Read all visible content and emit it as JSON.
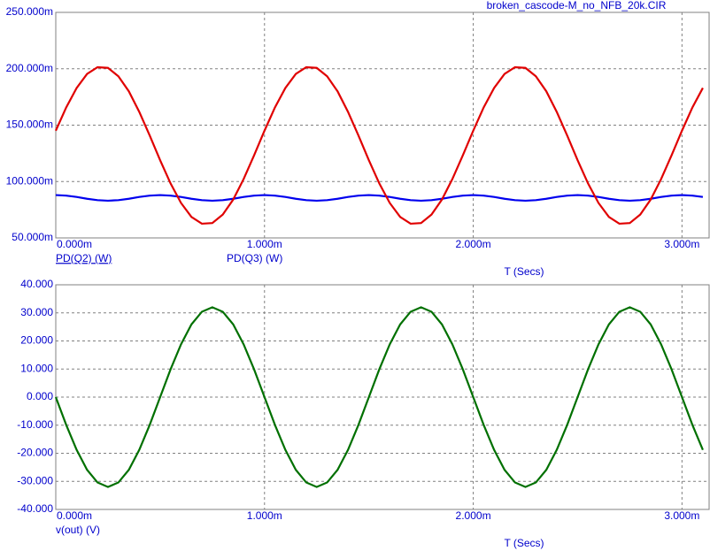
{
  "chart_data": [
    {
      "type": "line",
      "title": "broken_cascode-M_no_NFB_20k.CIR",
      "xlabel": "T (Secs)",
      "grid": true,
      "x": [
        0,
        5e-05,
        0.0001,
        0.00015,
        0.0002,
        0.00025,
        0.0003,
        0.00035,
        0.0004,
        0.00045,
        0.0005,
        0.00055,
        0.0006,
        0.00065,
        0.0007,
        0.00075,
        0.0008,
        0.00085,
        0.0009,
        0.00095,
        0.001,
        0.00105,
        0.0011,
        0.00115,
        0.0012,
        0.00125,
        0.0013,
        0.00135,
        0.0014,
        0.00145,
        0.0015,
        0.00155,
        0.0016,
        0.00165,
        0.0017,
        0.00175,
        0.0018,
        0.00185,
        0.0019,
        0.00195,
        0.002,
        0.00205,
        0.0021,
        0.00215,
        0.0022,
        0.00225,
        0.0023,
        0.00235,
        0.0024,
        0.00245,
        0.0025,
        0.00255,
        0.0026,
        0.00265,
        0.0027,
        0.00275,
        0.0028,
        0.00285,
        0.0029,
        0.00295,
        0.003,
        0.00305,
        0.0031
      ],
      "xlim": [
        0,
        0.00313
      ],
      "xticks": [
        {
          "value": 0,
          "label": "0.000m"
        },
        {
          "value": 0.001,
          "label": "1.000m"
        },
        {
          "value": 0.002,
          "label": "2.000m"
        },
        {
          "value": 0.003,
          "label": "3.000m"
        }
      ],
      "ylim": [
        0.05,
        0.25
      ],
      "yticks": [
        {
          "value": 0.05,
          "label": "50.000m"
        },
        {
          "value": 0.1,
          "label": "100.000m"
        },
        {
          "value": 0.15,
          "label": "150.000m"
        },
        {
          "value": 0.2,
          "label": "200.000m"
        },
        {
          "value": 0.25,
          "label": "250.000m"
        }
      ],
      "series": [
        {
          "name": "PD(Q2) (W)",
          "color": "#0000ee",
          "values": [
            0.088,
            0.0875,
            0.0863,
            0.0847,
            0.0835,
            0.083,
            0.0835,
            0.0847,
            0.0863,
            0.0875,
            0.088,
            0.0875,
            0.0863,
            0.0847,
            0.0835,
            0.083,
            0.0835,
            0.0847,
            0.0863,
            0.0875,
            0.088,
            0.0875,
            0.0863,
            0.0847,
            0.0835,
            0.083,
            0.0835,
            0.0847,
            0.0863,
            0.0875,
            0.088,
            0.0875,
            0.0863,
            0.0847,
            0.0835,
            0.083,
            0.0835,
            0.0847,
            0.0863,
            0.0875,
            0.088,
            0.0875,
            0.0863,
            0.0847,
            0.0835,
            0.083,
            0.0835,
            0.0847,
            0.0863,
            0.0875,
            0.088,
            0.0875,
            0.0863,
            0.0847,
            0.0835,
            0.083,
            0.0835,
            0.0847,
            0.0863,
            0.0875,
            0.088,
            0.0875,
            0.0863
          ]
        },
        {
          "name": "PD(Q3) (W)",
          "color": "#e00000",
          "values": [
            0.1451,
            0.1657,
            0.183,
            0.1954,
            0.2014,
            0.2008,
            0.1933,
            0.18,
            0.1618,
            0.1408,
            0.1189,
            0.0983,
            0.081,
            0.0686,
            0.0626,
            0.0632,
            0.0707,
            0.084,
            0.1022,
            0.1232,
            0.1451,
            0.1657,
            0.183,
            0.1954,
            0.2014,
            0.2008,
            0.1933,
            0.18,
            0.1618,
            0.1408,
            0.1189,
            0.0983,
            0.081,
            0.0686,
            0.0626,
            0.0632,
            0.0707,
            0.084,
            0.1022,
            0.1232,
            0.1451,
            0.1657,
            0.183,
            0.1954,
            0.2014,
            0.2008,
            0.1933,
            0.18,
            0.1618,
            0.1408,
            0.1189,
            0.0983,
            0.081,
            0.0686,
            0.0626,
            0.0632,
            0.0707,
            0.084,
            0.1022,
            0.1232,
            0.1451,
            0.1657,
            0.183
          ]
        }
      ]
    },
    {
      "type": "line",
      "xlabel": "T (Secs)",
      "grid": true,
      "x": [
        0,
        5e-05,
        0.0001,
        0.00015,
        0.0002,
        0.00025,
        0.0003,
        0.00035,
        0.0004,
        0.00045,
        0.0005,
        0.00055,
        0.0006,
        0.00065,
        0.0007,
        0.00075,
        0.0008,
        0.00085,
        0.0009,
        0.00095,
        0.001,
        0.00105,
        0.0011,
        0.00115,
        0.0012,
        0.00125,
        0.0013,
        0.00135,
        0.0014,
        0.00145,
        0.0015,
        0.00155,
        0.0016,
        0.00165,
        0.0017,
        0.00175,
        0.0018,
        0.00185,
        0.0019,
        0.00195,
        0.002,
        0.00205,
        0.0021,
        0.00215,
        0.0022,
        0.00225,
        0.0023,
        0.00235,
        0.0024,
        0.00245,
        0.0025,
        0.00255,
        0.0026,
        0.00265,
        0.0027,
        0.00275,
        0.0028,
        0.00285,
        0.0029,
        0.00295,
        0.003,
        0.00305,
        0.0031
      ],
      "xlim": [
        0,
        0.00313
      ],
      "xticks": [
        {
          "value": 0,
          "label": "0.000m"
        },
        {
          "value": 0.001,
          "label": "1.000m"
        },
        {
          "value": 0.002,
          "label": "2.000m"
        },
        {
          "value": 0.003,
          "label": "3.000m"
        }
      ],
      "ylim": [
        -40,
        40
      ],
      "yticks": [
        {
          "value": -40,
          "label": "-40.000"
        },
        {
          "value": -30,
          "label": "-30.000"
        },
        {
          "value": -20,
          "label": "-20.000"
        },
        {
          "value": -10,
          "label": "-10.000"
        },
        {
          "value": 0,
          "label": "0.000"
        },
        {
          "value": 10,
          "label": "10.000"
        },
        {
          "value": 20,
          "label": "20.000"
        },
        {
          "value": 30,
          "label": "30.000"
        },
        {
          "value": 40,
          "label": "40.000"
        }
      ],
      "series": [
        {
          "name": "v(out) (V)",
          "color": "#007000",
          "values": [
            0,
            -9.9,
            -18.8,
            -25.9,
            -30.4,
            -32,
            -30.4,
            -25.9,
            -18.8,
            -9.9,
            0,
            9.9,
            18.8,
            25.9,
            30.4,
            32,
            30.4,
            25.9,
            18.8,
            9.9,
            0,
            -9.9,
            -18.8,
            -25.9,
            -30.4,
            -32,
            -30.4,
            -25.9,
            -18.8,
            -9.9,
            0,
            9.9,
            18.8,
            25.9,
            30.4,
            32,
            30.4,
            25.9,
            18.8,
            9.9,
            0,
            -9.9,
            -18.8,
            -25.9,
            -30.4,
            -32,
            -30.4,
            -25.9,
            -18.8,
            -9.9,
            0,
            9.9,
            18.8,
            25.9,
            30.4,
            32,
            30.4,
            25.9,
            18.8,
            9.9,
            0,
            -9.9,
            -18.8
          ]
        }
      ]
    }
  ]
}
